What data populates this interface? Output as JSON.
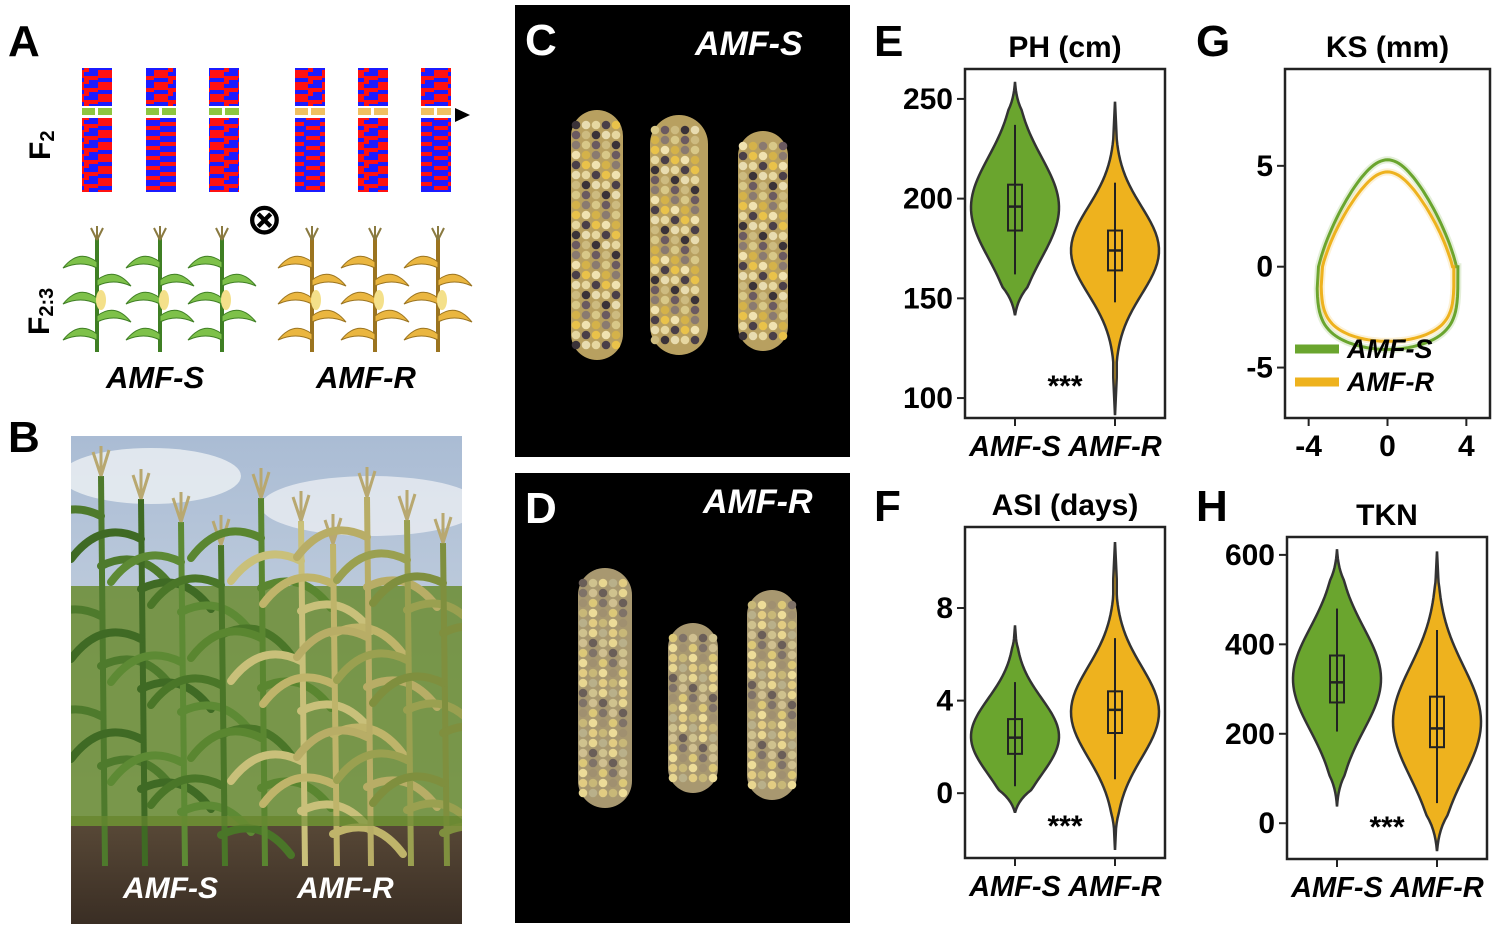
{
  "panels": {
    "A": {
      "label": "A",
      "gen1": "F",
      "gen1_sub": "2",
      "gen2": "F",
      "gen2_sub": "2:3",
      "cross_symbol": "⊗",
      "group_s": "AMF-S",
      "group_r": "AMF-R"
    },
    "B": {
      "label": "B",
      "left_label": "AMF-S",
      "right_label": "AMF-R"
    },
    "C": {
      "label": "C",
      "title": "AMF-S"
    },
    "D": {
      "label": "D",
      "title": "AMF-R"
    },
    "E": {
      "label": "E"
    },
    "F": {
      "label": "F"
    },
    "G": {
      "label": "G"
    },
    "H": {
      "label": "H"
    }
  },
  "colors": {
    "amf_s": "#6aa52e",
    "amf_r": "#eeb21e"
  },
  "chart_data": [
    {
      "id": "E",
      "type": "violin",
      "title": "PH (cm)",
      "categories": [
        "AMF-S",
        "AMF-R"
      ],
      "ylim": [
        90,
        265
      ],
      "yticks": [
        100,
        150,
        200,
        250
      ],
      "annotation": "***",
      "series": [
        {
          "name": "AMF-S",
          "min": 142,
          "q1": 184,
          "median": 196,
          "q3": 207,
          "max": 258,
          "whisker_low": 162,
          "whisker_high": 237
        },
        {
          "name": "AMF-R",
          "min": 92,
          "q1": 164,
          "median": 174,
          "q3": 184,
          "max": 248,
          "whisker_low": 148,
          "whisker_high": 208
        }
      ]
    },
    {
      "id": "F",
      "type": "violin",
      "title": "ASI (days)",
      "categories": [
        "AMF-S",
        "AMF-R"
      ],
      "ylim": [
        -2.8,
        11.5
      ],
      "yticks": [
        0,
        4,
        8
      ],
      "annotation": "***",
      "series": [
        {
          "name": "AMF-S",
          "min": -0.8,
          "q1": 1.7,
          "median": 2.4,
          "q3": 3.2,
          "max": 7.2,
          "whisker_low": 0.3,
          "whisker_high": 4.8
        },
        {
          "name": "AMF-R",
          "min": -2.4,
          "q1": 2.6,
          "median": 3.6,
          "q3": 4.4,
          "max": 10.8,
          "whisker_low": 0.6,
          "whisker_high": 6.7
        }
      ]
    },
    {
      "id": "H",
      "type": "violin",
      "title": "TKN",
      "categories": [
        "AMF-S",
        "AMF-R"
      ],
      "ylim": [
        -80,
        640
      ],
      "yticks": [
        0,
        200,
        400,
        600
      ],
      "annotation": "***",
      "series": [
        {
          "name": "AMF-S",
          "min": 40,
          "q1": 270,
          "median": 315,
          "q3": 375,
          "max": 610,
          "whisker_low": 205,
          "whisker_high": 480
        },
        {
          "name": "AMF-R",
          "min": -60,
          "q1": 170,
          "median": 212,
          "q3": 283,
          "max": 605,
          "whisker_low": 45,
          "whisker_high": 432
        }
      ]
    },
    {
      "id": "G",
      "type": "line",
      "title": "KS (mm)",
      "xlim": [
        -5.2,
        5.2
      ],
      "ylim": [
        -7.5,
        9.8
      ],
      "xticks": [
        -4,
        0,
        4
      ],
      "yticks": [
        -5,
        0,
        5
      ],
      "legend": "bottom-left",
      "series": [
        {
          "name": "AMF-S",
          "top": 5.3,
          "bottom": -4.1,
          "half_width": 3.5
        },
        {
          "name": "AMF-R",
          "top": 4.7,
          "bottom": -3.7,
          "half_width": 3.3
        }
      ]
    }
  ]
}
